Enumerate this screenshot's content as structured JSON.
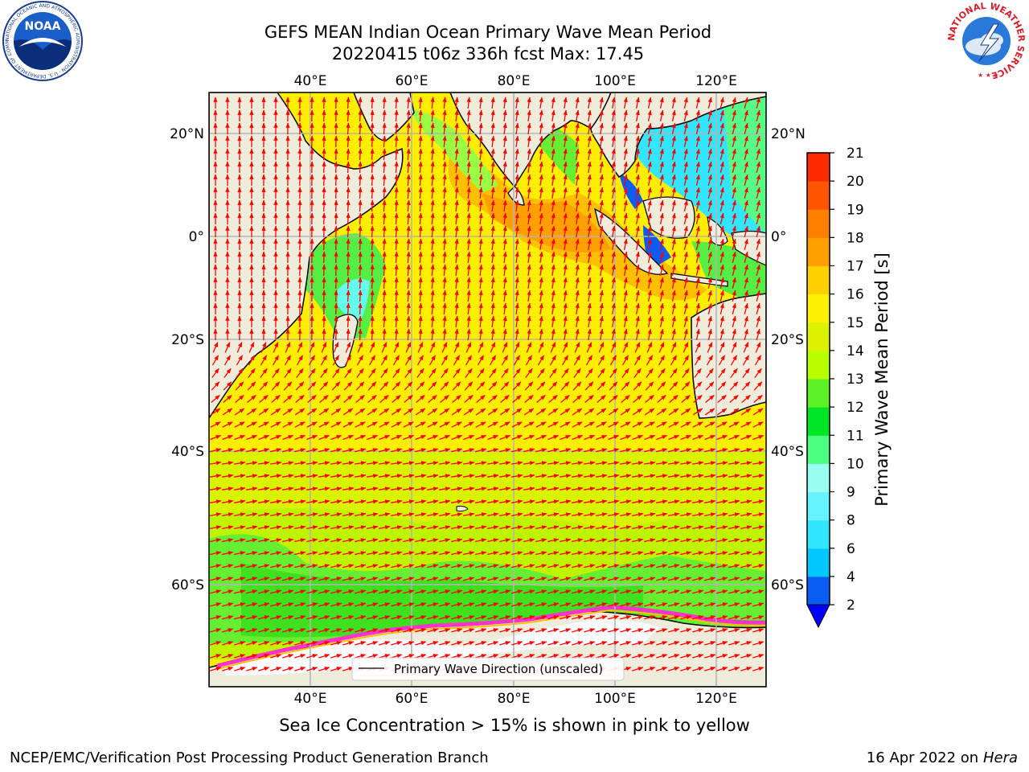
{
  "header": {
    "title_line1": "GEFS MEAN Indian Ocean Primary Wave Mean Period",
    "title_line2": "20220415 t06z 336h fcst   Max: 17.45"
  },
  "map": {
    "lon_labels": [
      "40°E",
      "60°E",
      "80°E",
      "100°E",
      "120°E"
    ],
    "lat_labels": [
      "20°N",
      "0°",
      "20°S",
      "40°S",
      "60°S"
    ],
    "legend_label": "Primary Wave Direction (unscaled)",
    "arrow_color": "#ff0000",
    "land_color": "#efecdc",
    "ice_color": "#ff33cc"
  },
  "colorbar": {
    "label": "Primary Wave Mean Period [s]",
    "ticks": [
      "2",
      "4",
      "6",
      "8",
      "9",
      "10",
      "11",
      "12",
      "13",
      "14",
      "15",
      "16",
      "17",
      "18",
      "19",
      "20",
      "21"
    ],
    "colors": [
      "#0a5cf5",
      "#00c8ff",
      "#33e6ff",
      "#66f2ff",
      "#99fff0",
      "#4dff80",
      "#00e626",
      "#5cf026",
      "#b8ff00",
      "#dcf200",
      "#fff000",
      "#ffd000",
      "#ffa000",
      "#ff8000",
      "#ff5500",
      "#ff2a00"
    ],
    "under_color": "#0000ff"
  },
  "caption": "Sea Ice Concentration > 15% is shown in pink to yellow",
  "footer": {
    "left": "NCEP/EMC/Verification Post Processing Product Generation Branch",
    "right_date": "16 Apr 2022 on ",
    "right_host": "Hera"
  },
  "logos": {
    "noaa_text": "NOAA",
    "noaa_ring_text": "NATIONAL OCEANIC AND ATMOSPHERIC ADMINISTRATION · U.S. DEPARTMENT OF COMMERCE",
    "nws_ring_text": "NATIONAL WEATHER SERVICE"
  }
}
